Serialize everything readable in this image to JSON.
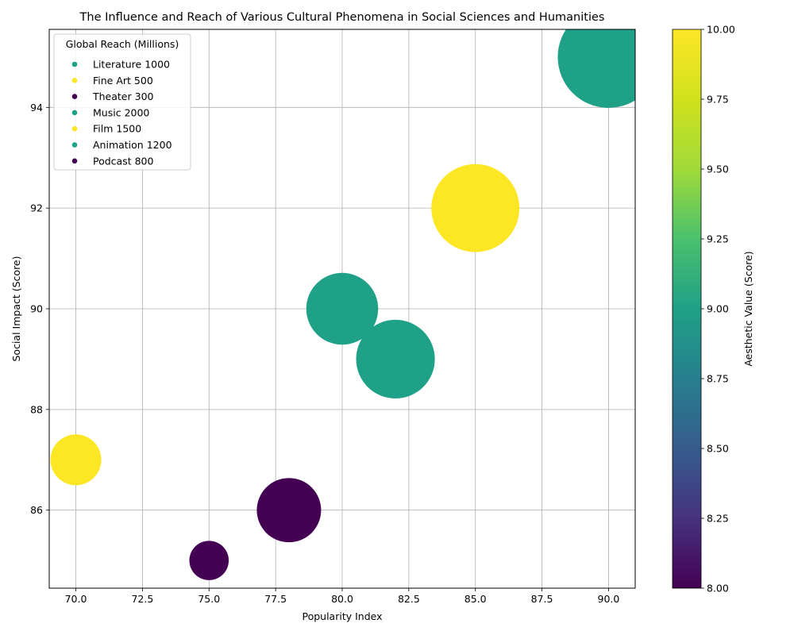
{
  "chart_data": {
    "type": "scatter",
    "title": "The Influence and Reach of Various Cultural Phenomena in Social Sciences and Humanities",
    "xlabel": "Popularity Index",
    "ylabel": "Social Impact (Score)",
    "xlim": [
      69,
      91
    ],
    "ylim": [
      84.45,
      95.55
    ],
    "xticks": [
      "70.0",
      "72.5",
      "75.0",
      "77.5",
      "80.0",
      "82.5",
      "85.0",
      "87.5",
      "90.0"
    ],
    "yticks": [
      "86",
      "88",
      "90",
      "92",
      "94"
    ],
    "grid": true,
    "colorbar": {
      "label": "Aesthetic Value (Score)",
      "range": [
        8,
        10
      ],
      "ticks": [
        "8.00",
        "8.25",
        "8.50",
        "8.75",
        "9.00",
        "9.25",
        "9.50",
        "9.75",
        "10.00"
      ],
      "colormap": "viridis"
    },
    "legend": {
      "title": "Global Reach (Millions)",
      "placement": "upper-left"
    },
    "points": [
      {
        "name": "Literature",
        "reach": 1000,
        "popularity": 80,
        "social_impact": 90,
        "aesthetic": 9
      },
      {
        "name": "Fine Art",
        "reach": 500,
        "popularity": 70,
        "social_impact": 87,
        "aesthetic": 10
      },
      {
        "name": "Theater",
        "reach": 300,
        "popularity": 75,
        "social_impact": 85,
        "aesthetic": 8
      },
      {
        "name": "Music",
        "reach": 2000,
        "popularity": 90,
        "social_impact": 95,
        "aesthetic": 9
      },
      {
        "name": "Film",
        "reach": 1500,
        "popularity": 85,
        "social_impact": 92,
        "aesthetic": 10
      },
      {
        "name": "Animation",
        "reach": 1200,
        "popularity": 82,
        "social_impact": 89,
        "aesthetic": 9
      },
      {
        "name": "Podcast",
        "reach": 800,
        "popularity": 78,
        "social_impact": 86,
        "aesthetic": 8
      }
    ]
  }
}
